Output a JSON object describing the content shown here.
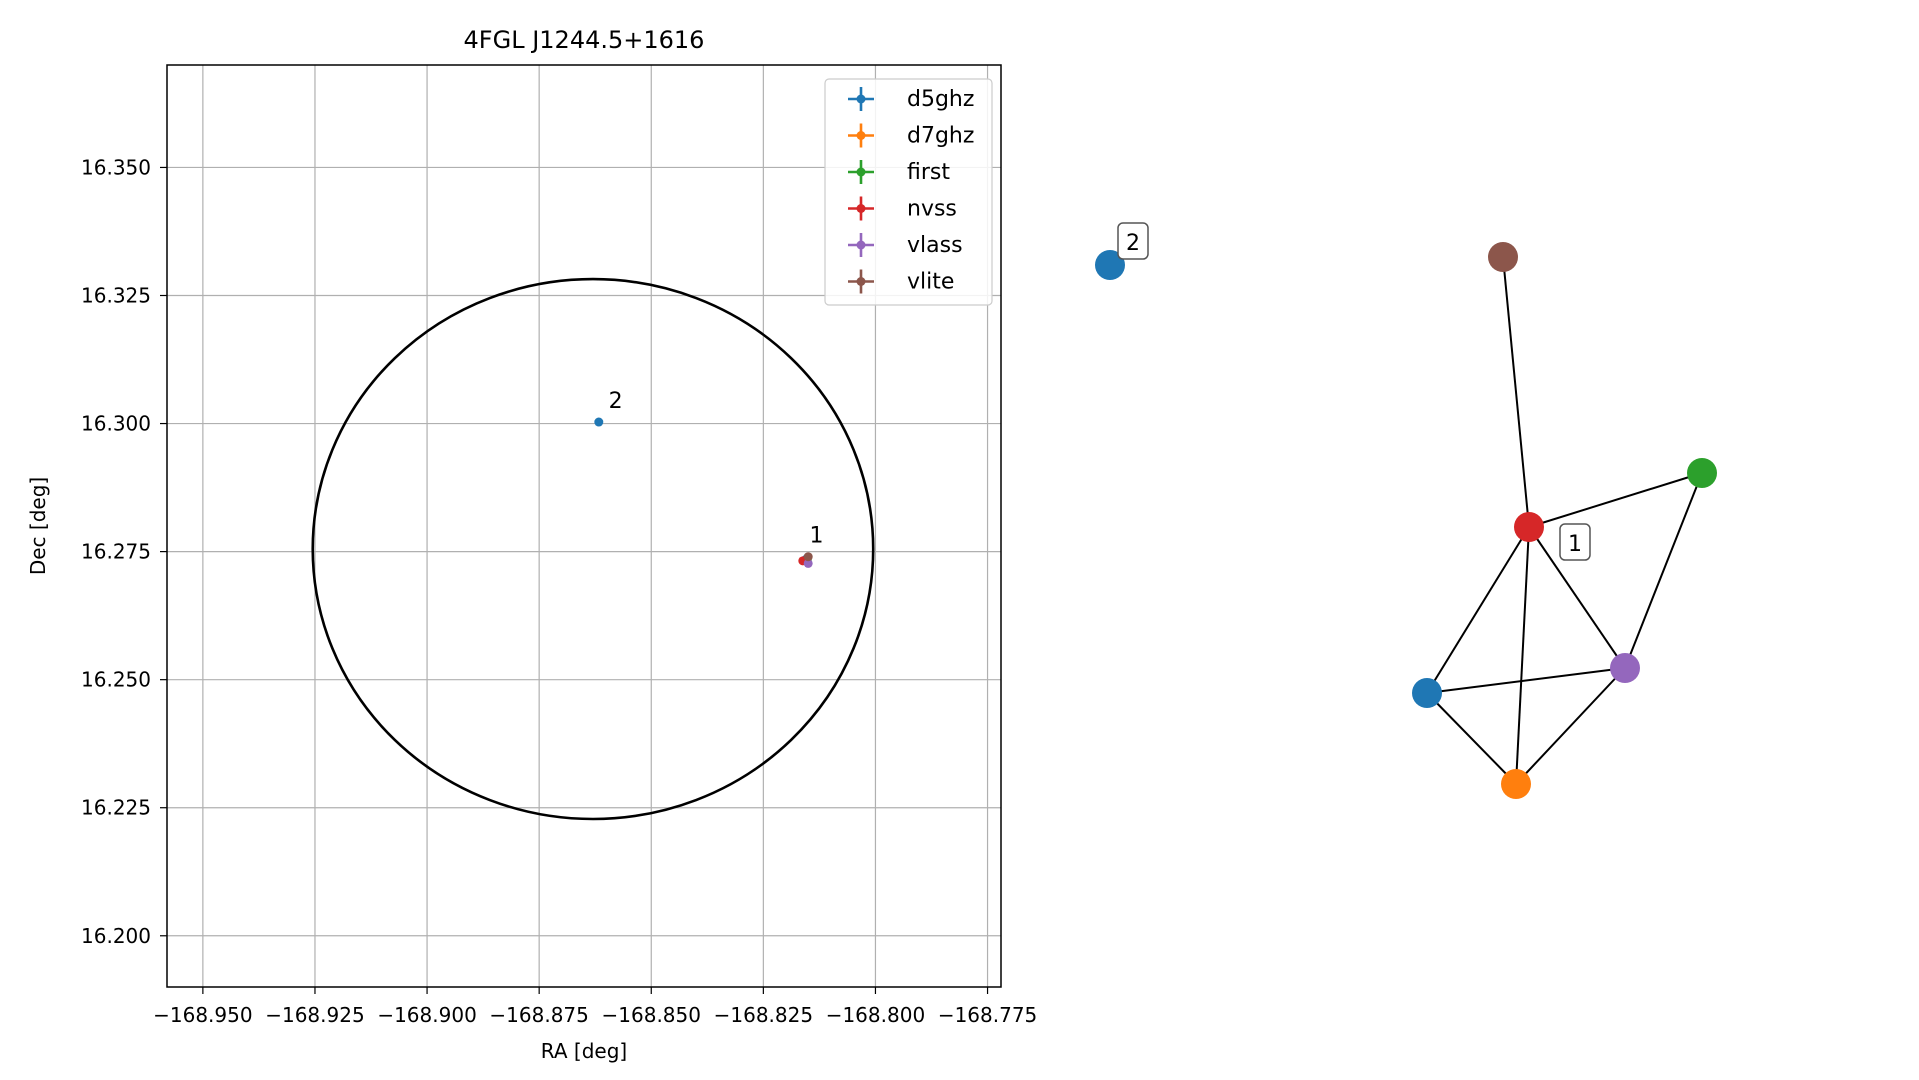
{
  "chart_data": [
    {
      "type": "scatter",
      "title": "4FGL J1244.5+1616",
      "xlabel": "RA [deg]",
      "ylabel": "Dec [deg]",
      "xlim": [
        -168.958,
        -168.772
      ],
      "ylim": [
        16.19,
        16.37
      ],
      "xticks": [
        -168.95,
        -168.925,
        -168.9,
        -168.875,
        -168.85,
        -168.825,
        -168.8,
        -168.775
      ],
      "xtick_labels": [
        "−168.950",
        "−168.925",
        "−168.900",
        "−168.875",
        "−168.850",
        "−168.825",
        "−168.800",
        "−168.775"
      ],
      "yticks": [
        16.2,
        16.225,
        16.25,
        16.275,
        16.3,
        16.325,
        16.35
      ],
      "ytick_labels": [
        "16.200",
        "16.225",
        "16.250",
        "16.275",
        "16.300",
        "16.325",
        "16.350"
      ],
      "grid": true,
      "legend_position": "top-right",
      "series": [
        {
          "name": "d5ghz",
          "color": "#1f77b4",
          "points": [
            {
              "x": -168.8155,
              "y": 16.2735
            },
            {
              "x": -168.8617,
              "y": 16.3003
            }
          ]
        },
        {
          "name": "d7ghz",
          "color": "#ff7f0e",
          "points": [
            {
              "x": -168.8155,
              "y": 16.2732
            }
          ]
        },
        {
          "name": "first",
          "color": "#2ca02c",
          "points": [
            {
              "x": -168.8152,
              "y": 16.2734
            }
          ]
        },
        {
          "name": "nvss",
          "color": "#d62728",
          "points": [
            {
              "x": -168.8162,
              "y": 16.2732
            }
          ]
        },
        {
          "name": "vlass",
          "color": "#9467bd",
          "points": [
            {
              "x": -168.815,
              "y": 16.2727
            }
          ]
        },
        {
          "name": "vlite",
          "color": "#8c564b",
          "points": [
            {
              "x": -168.815,
              "y": 16.274
            }
          ]
        }
      ],
      "annotations": [
        {
          "text": "1",
          "x": -168.8147,
          "y": 16.2768
        },
        {
          "text": "2",
          "x": -168.8595,
          "y": 16.303
        }
      ],
      "ellipse": {
        "center_x": -168.863,
        "center_y": 16.2755,
        "radius_x": 0.0625,
        "radius_y": 0.0527,
        "color": "#000000"
      }
    },
    {
      "type": "network",
      "node_colors": {
        "d5ghz": "#1f77b4",
        "d7ghz": "#ff7f0e",
        "first": "#2ca02c",
        "nvss": "#d62728",
        "vlass": "#9467bd",
        "vlite": "#8c564b"
      },
      "groups": [
        {
          "label": "2",
          "nodes": [
            {
              "id": "d5ghz_2",
              "color": "#1f77b4"
            }
          ],
          "edges": []
        },
        {
          "label": "1",
          "nodes": [
            {
              "id": "vlite",
              "color": "#8c564b"
            },
            {
              "id": "first",
              "color": "#2ca02c"
            },
            {
              "id": "nvss",
              "color": "#d62728"
            },
            {
              "id": "vlass",
              "color": "#9467bd"
            },
            {
              "id": "d5ghz",
              "color": "#1f77b4"
            },
            {
              "id": "d7ghz",
              "color": "#ff7f0e"
            }
          ],
          "edges": [
            [
              "vlite",
              "nvss"
            ],
            [
              "nvss",
              "first"
            ],
            [
              "first",
              "vlass"
            ],
            [
              "nvss",
              "vlass"
            ],
            [
              "nvss",
              "d5ghz"
            ],
            [
              "nvss",
              "d7ghz"
            ],
            [
              "d5ghz",
              "vlass"
            ],
            [
              "d5ghz",
              "d7ghz"
            ],
            [
              "d7ghz",
              "vlass"
            ]
          ]
        }
      ]
    }
  ]
}
